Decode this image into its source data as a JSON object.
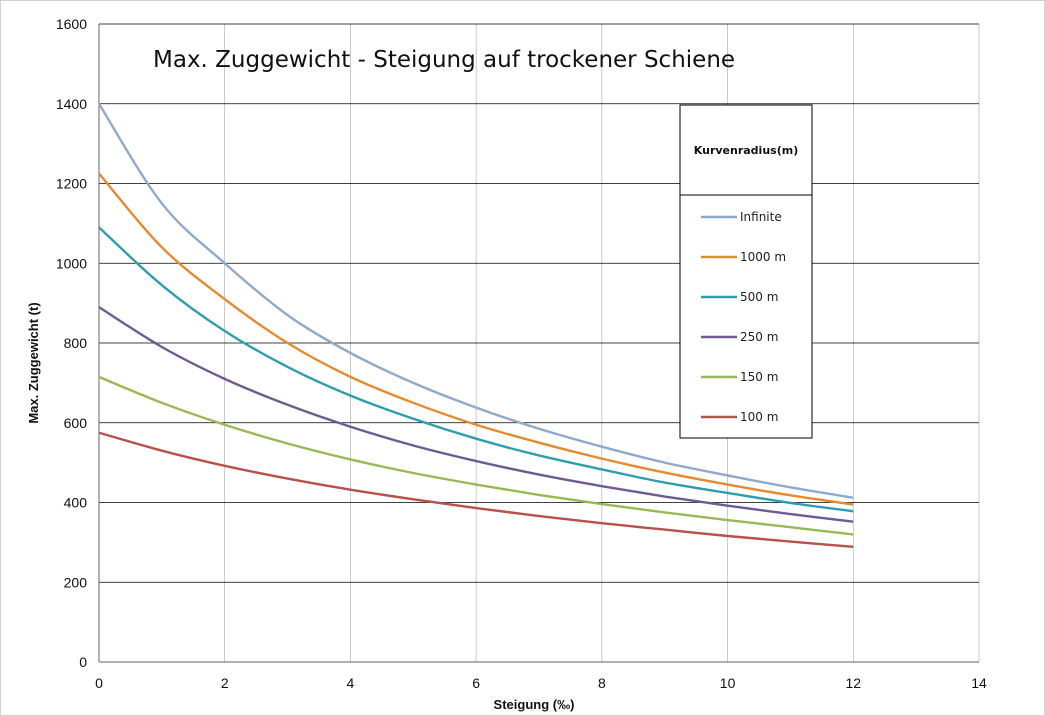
{
  "chart_data": {
    "type": "line",
    "title": "Max. Zuggewicht - Steigung auf trockener Schiene",
    "xlabel": "Steigung (‰)",
    "ylabel": "Max. Zuggewicht  (t)",
    "xlim": [
      0,
      14
    ],
    "ylim": [
      0,
      1600
    ],
    "xticks": [
      0,
      2,
      4,
      6,
      8,
      10,
      12,
      14
    ],
    "yticks": [
      0,
      200,
      400,
      600,
      800,
      1000,
      1200,
      1400,
      1600
    ],
    "grid": true,
    "legend": {
      "title": "Kurvenradius(m)",
      "position": "right"
    },
    "x": [
      0,
      1,
      2,
      3,
      4,
      5,
      6,
      7,
      8,
      9,
      10,
      11,
      12
    ],
    "series": [
      {
        "name": "Infinite",
        "color": "#8EA9CC",
        "values": [
          1400,
          1150,
          1000,
          870,
          775,
          700,
          638,
          585,
          540,
          500,
          468,
          438,
          412
        ]
      },
      {
        "name": "1000 m",
        "color": "#E58A2E",
        "values": [
          1225,
          1040,
          910,
          800,
          715,
          650,
          595,
          550,
          510,
          475,
          445,
          418,
          395
        ]
      },
      {
        "name": "500 m",
        "color": "#2E9DB0",
        "values": [
          1090,
          945,
          830,
          740,
          668,
          610,
          560,
          518,
          483,
          450,
          424,
          399,
          378
        ]
      },
      {
        "name": "250 m",
        "color": "#6F5A94",
        "values": [
          890,
          790,
          710,
          645,
          590,
          543,
          504,
          470,
          441,
          415,
          392,
          371,
          352
        ]
      },
      {
        "name": "150 m",
        "color": "#98B954",
        "values": [
          715,
          650,
          595,
          548,
          508,
          474,
          445,
          419,
          396,
          375,
          356,
          338,
          320
        ]
      },
      {
        "name": "100 m",
        "color": "#B9504C",
        "values": [
          575,
          530,
          492,
          460,
          432,
          408,
          386,
          366,
          348,
          332,
          316,
          302,
          289
        ]
      }
    ]
  }
}
